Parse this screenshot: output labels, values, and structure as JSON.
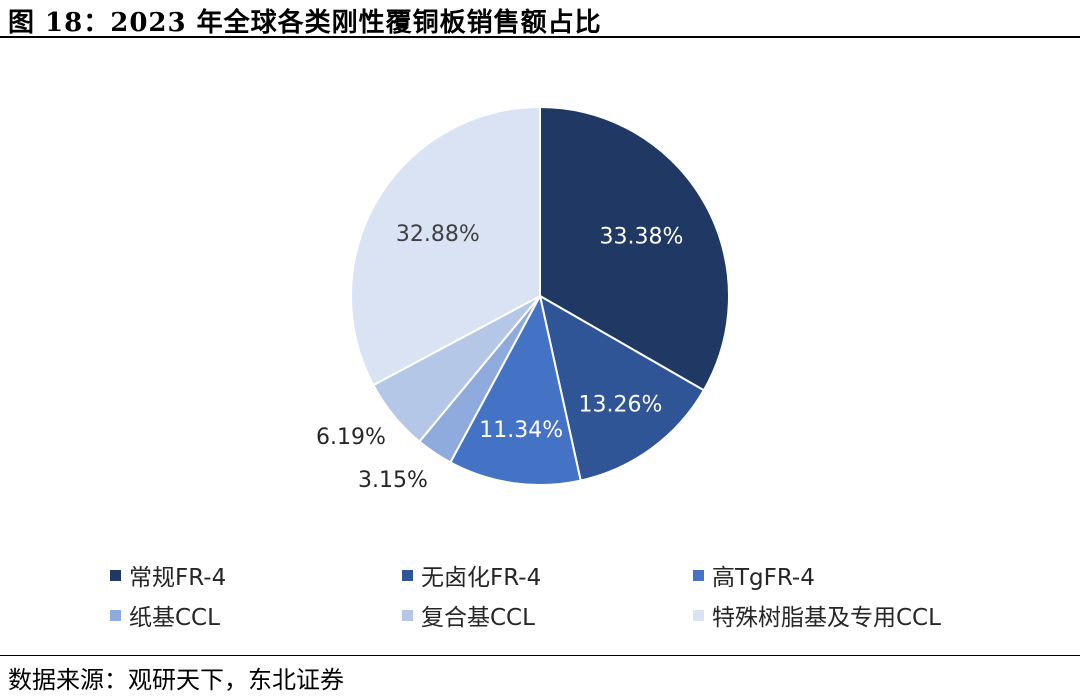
{
  "title": "图 18：2023 年全球各类刚性覆铜板销售额占比",
  "source": "数据来源：观研天下，东北证券",
  "chart_data": {
    "type": "pie",
    "slices": [
      {
        "label": "常规FR-4",
        "value": 33.38,
        "value_label": "33.38%",
        "color": "#203864"
      },
      {
        "label": "无卤化FR-4",
        "value": 13.26,
        "value_label": "13.26%",
        "color": "#2F5597"
      },
      {
        "label": "高TgFR-4",
        "value": 11.34,
        "value_label": "11.34%",
        "color": "#4472C4"
      },
      {
        "label": "纸基CCL",
        "value": 3.15,
        "value_label": "3.15%",
        "color": "#8FAADC"
      },
      {
        "label": "复合基CCL",
        "value": 6.19,
        "value_label": "6.19%",
        "color": "#B4C7E7"
      },
      {
        "label": "特殊树脂基及专用CCL",
        "value": 32.88,
        "value_label": "32.88%",
        "color": "#DAE3F3"
      }
    ],
    "start_angle": "12 o'clock",
    "direction": "clockwise",
    "legend_position": "bottom"
  }
}
